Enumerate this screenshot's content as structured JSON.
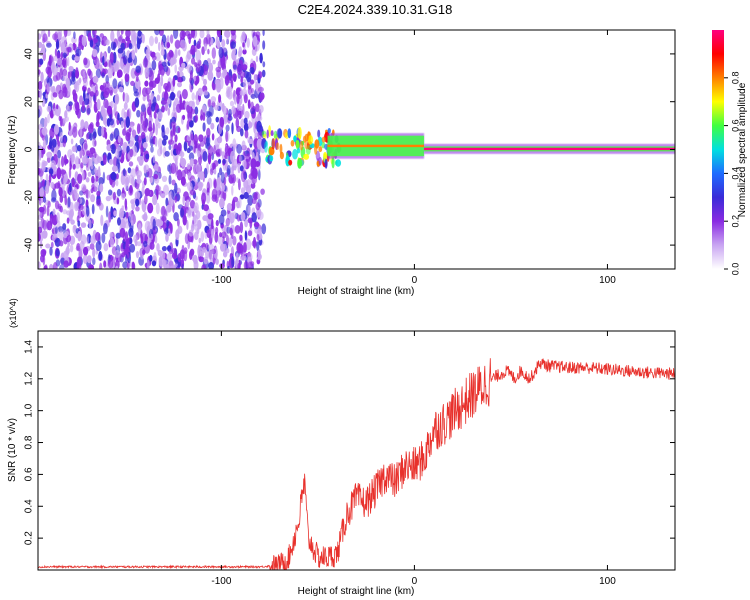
{
  "title": "C2E4.2024.339.10.31.G18",
  "chart_data": [
    {
      "type": "heatmap",
      "xlabel": "Height of straight line (km)",
      "ylabel": "Frequency (Hz)",
      "xlim": [
        -195,
        135
      ],
      "ylim": [
        -50,
        50
      ],
      "xticks": [
        -100,
        0,
        100
      ],
      "xtick_labels": [
        "-100",
        "0",
        "100"
      ],
      "yticks": [
        40,
        20,
        0,
        -20,
        -40
      ],
      "ytick_labels": [
        "40",
        "20",
        "0",
        "-20",
        "-40"
      ],
      "colorbar": {
        "label": "Normalized spectral amplitude",
        "range": [
          0,
          1
        ],
        "ticks": [
          0.0,
          0.2,
          0.4,
          0.6,
          0.8
        ],
        "tick_labels": [
          "0.0",
          "0.2",
          "0.4",
          "0.6",
          "0.8"
        ],
        "colors": [
          "#ffffff",
          "#c9a5f2",
          "#8a2be2",
          "#3a2bd8",
          "#1e6cff",
          "#00e0e0",
          "#40ff40",
          "#ffff00",
          "#ff8000",
          "#ff0000",
          "#ff0080"
        ]
      },
      "regions": [
        {
          "x": [
            -195,
            -78
          ],
          "y": [
            -50,
            50
          ],
          "amplitude": 0.15,
          "pattern": "noise"
        },
        {
          "x": [
            -78,
            -38
          ],
          "y": [
            -6,
            8
          ],
          "amplitude": 0.45,
          "pattern": "noise"
        },
        {
          "x": [
            -45,
            5
          ],
          "y": [
            -3,
            6
          ],
          "amplitude": 0.8,
          "pattern": "line"
        },
        {
          "x": [
            5,
            135
          ],
          "y": [
            -1,
            1.5
          ],
          "amplitude": 0.95,
          "pattern": "line"
        }
      ]
    },
    {
      "type": "line",
      "xlabel": "Height of straight line (km)",
      "ylabel": "SNR (10 * v/v)",
      "y_multiplier": "(x10^4)",
      "xlim": [
        -195,
        135
      ],
      "ylim": [
        0,
        1.5
      ],
      "xticks": [
        -100,
        0,
        100
      ],
      "xtick_labels": [
        "-100",
        "0",
        "100"
      ],
      "yticks": [
        0.2,
        0.4,
        0.6,
        0.8,
        1.0,
        1.2,
        1.4
      ],
      "ytick_labels": [
        "0.2",
        "0.4",
        "0.6",
        "0.8",
        "1.0",
        "1.2",
        "1.4"
      ],
      "color": "#e8312c",
      "x": [
        -195,
        -150,
        -100,
        -80,
        -70,
        -65,
        -60,
        -57,
        -55,
        -50,
        -45,
        -40,
        -35,
        -30,
        -25,
        -20,
        -15,
        -10,
        -5,
        0,
        5,
        10,
        15,
        20,
        30,
        40,
        48,
        52,
        55,
        60,
        65,
        70,
        80,
        90,
        100,
        110,
        120,
        135
      ],
      "y": [
        0.02,
        0.02,
        0.02,
        0.02,
        0.03,
        0.08,
        0.3,
        0.55,
        0.2,
        0.08,
        0.08,
        0.1,
        0.35,
        0.45,
        0.42,
        0.5,
        0.6,
        0.55,
        0.65,
        0.65,
        0.7,
        0.88,
        0.92,
        0.98,
        1.1,
        1.2,
        1.25,
        1.2,
        1.25,
        1.2,
        1.3,
        1.28,
        1.27,
        1.27,
        1.26,
        1.25,
        1.24,
        1.23
      ]
    }
  ]
}
